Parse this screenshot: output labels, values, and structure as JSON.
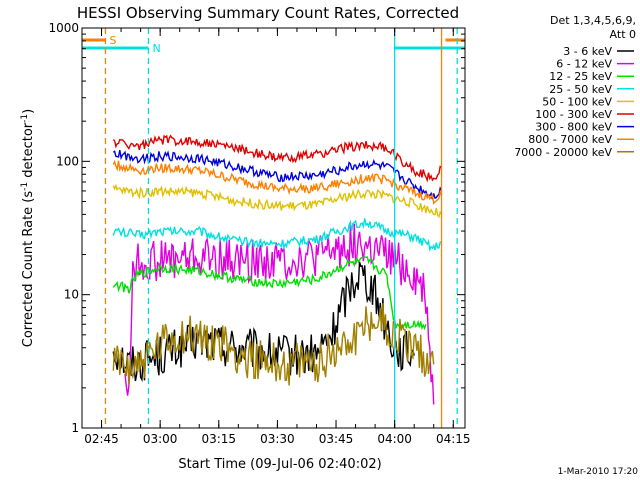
{
  "chart_data": {
    "type": "line",
    "title": "HESSI Observing Summary Count Rates, Corrected",
    "xlabel": "Start Time (09-Jul-06 02:40:02)",
    "ylabel_main": "Corrected Count Rate (s",
    "ylabel_sup1": "-1",
    "ylabel_mid": " detector",
    "ylabel_sup2": "-1",
    "ylabel_end": ")",
    "yscale": "log",
    "ylim": [
      1,
      1000
    ],
    "xlim": [
      "02:40",
      "04:18"
    ],
    "y_ticks": [
      "1",
      "10",
      "100",
      "1000"
    ],
    "x_ticks": [
      "02:45",
      "03:00",
      "03:15",
      "03:30",
      "03:45",
      "04:00",
      "04:15"
    ],
    "legend_placement": "right",
    "legend_header": [
      "Det 1,3,4,5,6,9,",
      "Att 0"
    ],
    "timestamp": "1-Mar-2010 17:20",
    "flags": [
      {
        "label": "S",
        "color": "#ff7f00",
        "start": "02:40",
        "end": "02:46",
        "resume": "04:13"
      },
      {
        "label": "N",
        "color": "#00e0e0",
        "start": "02:40",
        "end": "02:57",
        "resume": "04:00"
      }
    ],
    "dashed_markers": [
      {
        "time": "02:46",
        "color": "#ff7f00"
      },
      {
        "time": "02:57",
        "color": "#00e0e0"
      },
      {
        "time": "04:00",
        "color": "#00e0e0",
        "solid": true
      },
      {
        "time": "04:12",
        "color": "#ff7f00",
        "solid": true
      },
      {
        "time": "04:16",
        "color": "#00e0e0"
      }
    ],
    "series": [
      {
        "name": "3 - 6 keV",
        "color": "#000000",
        "points": [
          [
            "02:48",
            4
          ],
          [
            "02:52",
            3
          ],
          [
            "03:00",
            3.5
          ],
          [
            "03:10",
            4.5
          ],
          [
            "03:20",
            4
          ],
          [
            "03:30",
            3.5
          ],
          [
            "03:40",
            3.5
          ],
          [
            "03:44",
            5
          ],
          [
            "03:48",
            11
          ],
          [
            "03:51",
            15
          ],
          [
            "03:54",
            12
          ],
          [
            "03:57",
            7
          ],
          [
            "04:00",
            4
          ],
          [
            "04:05",
            3.5
          ]
        ]
      },
      {
        "name": "6 - 12 keV",
        "color": "#e000e0",
        "points": [
          [
            "02:51",
            3
          ],
          [
            "02:52",
            1.5
          ],
          [
            "02:53",
            17
          ],
          [
            "03:00",
            18
          ],
          [
            "03:10",
            19
          ],
          [
            "03:20",
            18
          ],
          [
            "03:30",
            18
          ],
          [
            "03:40",
            19
          ],
          [
            "03:45",
            22
          ],
          [
            "03:50",
            24
          ],
          [
            "03:55",
            21
          ],
          [
            "04:00",
            18
          ],
          [
            "04:05",
            14
          ],
          [
            "04:08",
            10
          ],
          [
            "04:10",
            1.5
          ]
        ]
      },
      {
        "name": "12 - 25 keV",
        "color": "#00e000",
        "points": [
          [
            "02:48",
            12
          ],
          [
            "02:52",
            11
          ],
          [
            "02:54",
            14
          ],
          [
            "03:00",
            16
          ],
          [
            "03:10",
            15
          ],
          [
            "03:20",
            13
          ],
          [
            "03:30",
            12
          ],
          [
            "03:40",
            13
          ],
          [
            "03:48",
            17
          ],
          [
            "03:53",
            18
          ],
          [
            "03:58",
            14
          ],
          [
            "04:00",
            6
          ],
          [
            "04:05",
            6
          ],
          [
            "04:08",
            6
          ]
        ]
      },
      {
        "name": "25 - 50 keV",
        "color": "#00e0e0",
        "points": [
          [
            "02:48",
            30
          ],
          [
            "02:55",
            28
          ],
          [
            "03:00",
            30
          ],
          [
            "03:10",
            30
          ],
          [
            "03:20",
            25
          ],
          [
            "03:30",
            24
          ],
          [
            "03:40",
            26
          ],
          [
            "03:48",
            32
          ],
          [
            "03:53",
            35
          ],
          [
            "03:58",
            30
          ],
          [
            "04:05",
            27
          ],
          [
            "04:10",
            22
          ],
          [
            "04:12",
            25
          ]
        ]
      },
      {
        "name": "50 - 100 keV",
        "color": "#e0c000",
        "points": [
          [
            "02:48",
            62
          ],
          [
            "02:55",
            58
          ],
          [
            "03:00",
            60
          ],
          [
            "03:10",
            58
          ],
          [
            "03:20",
            50
          ],
          [
            "03:30",
            46
          ],
          [
            "03:40",
            47
          ],
          [
            "03:48",
            55
          ],
          [
            "03:53",
            58
          ],
          [
            "03:58",
            55
          ],
          [
            "04:05",
            48
          ],
          [
            "04:10",
            42
          ],
          [
            "04:12",
            40
          ]
        ]
      },
      {
        "name": "100 - 300 keV",
        "color": "#e00000",
        "points": [
          [
            "02:48",
            140
          ],
          [
            "02:55",
            130
          ],
          [
            "03:00",
            145
          ],
          [
            "03:10",
            140
          ],
          [
            "03:20",
            125
          ],
          [
            "03:30",
            105
          ],
          [
            "03:40",
            112
          ],
          [
            "03:48",
            128
          ],
          [
            "03:53",
            133
          ],
          [
            "03:58",
            125
          ],
          [
            "04:05",
            85
          ],
          [
            "04:10",
            75
          ],
          [
            "04:12",
            90
          ]
        ]
      },
      {
        "name": "300 - 800 keV",
        "color": "#0000e0",
        "points": [
          [
            "02:48",
            115
          ],
          [
            "02:55",
            105
          ],
          [
            "03:00",
            110
          ],
          [
            "03:10",
            105
          ],
          [
            "03:20",
            90
          ],
          [
            "03:30",
            76
          ],
          [
            "03:40",
            78
          ],
          [
            "03:48",
            90
          ],
          [
            "03:53",
            96
          ],
          [
            "03:58",
            90
          ],
          [
            "04:05",
            65
          ],
          [
            "04:10",
            55
          ],
          [
            "04:12",
            60
          ]
        ]
      },
      {
        "name": "800 - 7000 keV",
        "color": "#ff7f00",
        "points": [
          [
            "02:48",
            95
          ],
          [
            "02:55",
            85
          ],
          [
            "03:00",
            90
          ],
          [
            "03:10",
            85
          ],
          [
            "03:20",
            72
          ],
          [
            "03:30",
            62
          ],
          [
            "03:40",
            63
          ],
          [
            "03:48",
            70
          ],
          [
            "03:53",
            76
          ],
          [
            "03:58",
            72
          ],
          [
            "04:05",
            58
          ],
          [
            "04:10",
            52
          ],
          [
            "04:12",
            55
          ]
        ]
      },
      {
        "name": "7000 - 20000 keV",
        "color": "#a08000",
        "points": [
          [
            "02:48",
            3
          ],
          [
            "02:55",
            3
          ],
          [
            "03:00",
            4
          ],
          [
            "03:05",
            5
          ],
          [
            "03:15",
            4.5
          ],
          [
            "03:20",
            3.5
          ],
          [
            "03:30",
            3
          ],
          [
            "03:40",
            3
          ],
          [
            "03:45",
            4
          ],
          [
            "03:50",
            5
          ],
          [
            "03:55",
            7
          ],
          [
            "04:00",
            5
          ],
          [
            "04:05",
            4
          ],
          [
            "04:10",
            3
          ]
        ]
      }
    ]
  }
}
